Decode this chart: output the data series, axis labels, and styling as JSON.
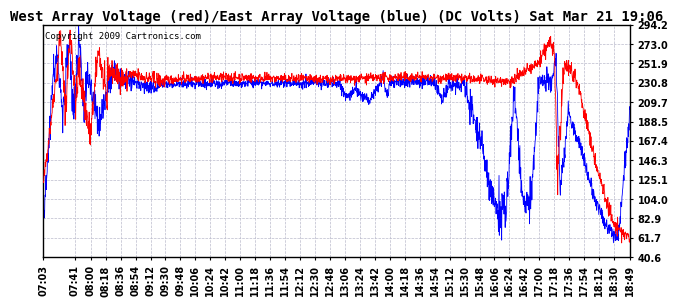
{
  "title": "West Array Voltage (red)/East Array Voltage (blue) (DC Volts) Sat Mar 21 19:06",
  "copyright": "Copyright 2009 Cartronics.com",
  "background_color": "#ffffff",
  "plot_bg_color": "#ffffff",
  "grid_color": "#bbbbcc",
  "red_color": "#ff0000",
  "blue_color": "#0000ff",
  "ylim": [
    40.6,
    294.2
  ],
  "yticks": [
    40.6,
    61.7,
    82.9,
    104.0,
    125.1,
    146.3,
    167.4,
    188.5,
    209.7,
    230.8,
    251.9,
    273.0,
    294.2
  ],
  "title_fontsize": 10,
  "tick_fontsize": 7,
  "copyright_fontsize": 6.5
}
